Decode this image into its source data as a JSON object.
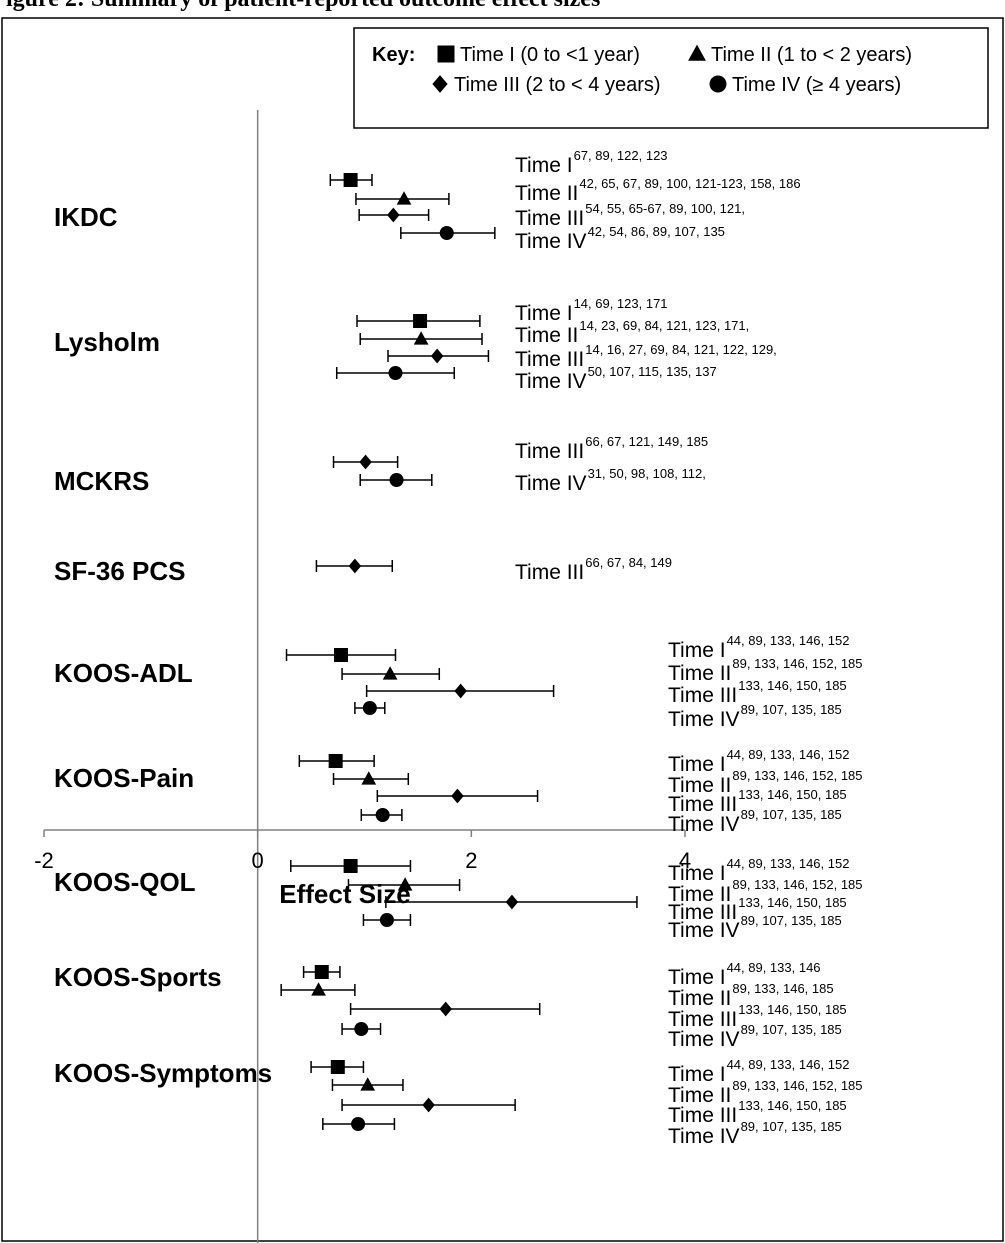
{
  "header": {
    "title": "igure 2: Summary of patient-reported outcome effect sizes"
  },
  "chart_data": {
    "type": "forest",
    "xlabel": "Effect Size",
    "xlim": [
      -2,
      4
    ],
    "xticks": [
      "-2",
      "0",
      "2",
      "4"
    ],
    "key": {
      "label": "Key:",
      "entries": [
        {
          "marker": "square",
          "text": "Time I (0 to <1 year)"
        },
        {
          "marker": "triangle",
          "text": "Time II (1 to < 2 years)"
        },
        {
          "marker": "diamond",
          "text": "Time III (2 to < 4 years)"
        },
        {
          "marker": "circle",
          "text": "Time IV (≥ 4 years)"
        }
      ]
    },
    "outcomes": [
      {
        "name": "IKDC",
        "entries": [
          {
            "period": "Time I",
            "marker": "square",
            "est": 0.87,
            "lo": 0.68,
            "hi": 1.07,
            "refs": "67, 89, 122, 123"
          },
          {
            "period": "Time II",
            "marker": "triangle",
            "est": 1.37,
            "lo": 0.92,
            "hi": 1.79,
            "refs": "42, 65, 67, 89, 100, 121-123, 158, 186"
          },
          {
            "period": "Time III",
            "marker": "diamond",
            "est": 1.27,
            "lo": 0.95,
            "hi": 1.6,
            "refs": "54, 55, 65-67, 89, 100, 121,"
          },
          {
            "period": "Time IV",
            "marker": "circle",
            "est": 1.77,
            "lo": 1.34,
            "hi": 2.22,
            "refs": "42, 54, 86, 89, 107, 135"
          }
        ]
      },
      {
        "name": "Lysholm",
        "entries": [
          {
            "period": "Time I",
            "marker": "square",
            "est": 1.52,
            "lo": 0.93,
            "hi": 2.08,
            "refs": "14, 69, 123, 171"
          },
          {
            "period": "Time II",
            "marker": "triangle",
            "est": 1.53,
            "lo": 0.96,
            "hi": 2.1,
            "refs": "14, 23, 69, 84, 121, 123, 171,"
          },
          {
            "period": "Time III",
            "marker": "diamond",
            "est": 1.68,
            "lo": 1.22,
            "hi": 2.16,
            "refs": "14, 16, 27, 69, 84, 121, 122, 129,"
          },
          {
            "period": "Time IV",
            "marker": "circle",
            "est": 1.29,
            "lo": 0.74,
            "hi": 1.84,
            "refs": "50, 107, 115, 135, 137"
          }
        ]
      },
      {
        "name": "MCKRS",
        "entries": [
          {
            "period": "Time III",
            "marker": "diamond",
            "est": 1.01,
            "lo": 0.71,
            "hi": 1.31,
            "refs": "66, 67, 121, 149, 185"
          },
          {
            "period": "Time IV",
            "marker": "circle",
            "est": 1.3,
            "lo": 0.96,
            "hi": 1.63,
            "refs": "31, 50, 98, 108, 112,"
          }
        ]
      },
      {
        "name": "SF-36 PCS",
        "entries": [
          {
            "period": "Time III",
            "marker": "diamond",
            "est": 0.91,
            "lo": 0.55,
            "hi": 1.26,
            "refs": "66, 67, 84, 149"
          }
        ]
      },
      {
        "name": "KOOS-ADL",
        "entries": [
          {
            "period": "Time I",
            "marker": "square",
            "est": 0.78,
            "lo": 0.27,
            "hi": 1.29,
            "refs": "44, 89, 133, 146, 152"
          },
          {
            "period": "Time II",
            "marker": "triangle",
            "est": 1.24,
            "lo": 0.79,
            "hi": 1.7,
            "refs": "89, 133, 146, 152, 185"
          },
          {
            "period": "Time III",
            "marker": "diamond",
            "est": 1.9,
            "lo": 1.02,
            "hi": 2.77,
            "refs": "133, 146, 150, 185"
          },
          {
            "period": "Time IV",
            "marker": "circle",
            "est": 1.05,
            "lo": 0.91,
            "hi": 1.19,
            "refs": "89, 107, 135, 185"
          }
        ]
      },
      {
        "name": "KOOS-Pain",
        "entries": [
          {
            "period": "Time I",
            "marker": "square",
            "est": 0.73,
            "lo": 0.39,
            "hi": 1.09,
            "refs": "44, 89, 133, 146, 152"
          },
          {
            "period": "Time II",
            "marker": "triangle",
            "est": 1.04,
            "lo": 0.71,
            "hi": 1.41,
            "refs": "89, 133, 146, 152, 185"
          },
          {
            "period": "Time III",
            "marker": "diamond",
            "est": 1.87,
            "lo": 1.12,
            "hi": 2.62,
            "refs": "133, 146, 150, 185"
          },
          {
            "period": "Time IV",
            "marker": "circle",
            "est": 1.17,
            "lo": 0.97,
            "hi": 1.35,
            "refs": "89, 107, 135, 185"
          }
        ]
      },
      {
        "name": "KOOS-QOL",
        "entries": [
          {
            "period": "Time I",
            "marker": "square",
            "est": 0.87,
            "lo": 0.31,
            "hi": 1.43,
            "refs": "44, 89, 133, 146, 152"
          },
          {
            "period": "Time II",
            "marker": "triangle",
            "est": 1.38,
            "lo": 0.85,
            "hi": 1.89,
            "refs": "89, 133, 146, 152, 185"
          },
          {
            "period": "Time III",
            "marker": "diamond",
            "est": 2.38,
            "lo": 1.2,
            "hi": 3.55,
            "refs": "133, 146, 150, 185"
          },
          {
            "period": "Time IV",
            "marker": "circle",
            "est": 1.21,
            "lo": 0.99,
            "hi": 1.43,
            "refs": "89, 107, 135, 185"
          }
        ]
      },
      {
        "name": "KOOS-Sports",
        "entries": [
          {
            "period": "Time I",
            "marker": "square",
            "est": 0.6,
            "lo": 0.43,
            "hi": 0.77,
            "refs": "44, 89, 133, 146"
          },
          {
            "period": "Time II",
            "marker": "triangle",
            "est": 0.57,
            "lo": 0.22,
            "hi": 0.91,
            "refs": "89, 133, 146, 185"
          },
          {
            "period": "Time III",
            "marker": "diamond",
            "est": 1.76,
            "lo": 0.87,
            "hi": 2.64,
            "refs": "133, 146, 150, 185"
          },
          {
            "period": "Time IV",
            "marker": "circle",
            "est": 0.97,
            "lo": 0.79,
            "hi": 1.15,
            "refs": "89, 107, 135, 185"
          }
        ]
      },
      {
        "name": "KOOS-Symptoms",
        "entries": [
          {
            "period": "Time I",
            "marker": "square",
            "est": 0.75,
            "lo": 0.5,
            "hi": 0.99,
            "refs": "44, 89, 133, 146, 152"
          },
          {
            "period": "Time II",
            "marker": "triangle",
            "est": 1.03,
            "lo": 0.7,
            "hi": 1.36,
            "refs": "89, 133, 146, 152, 185"
          },
          {
            "period": "Time III",
            "marker": "diamond",
            "est": 1.6,
            "lo": 0.79,
            "hi": 2.41,
            "refs": "133, 146, 150, 185"
          },
          {
            "period": "Time IV",
            "marker": "circle",
            "est": 0.94,
            "lo": 0.61,
            "hi": 1.28,
            "refs": "89, 107, 135, 185"
          }
        ]
      }
    ]
  }
}
